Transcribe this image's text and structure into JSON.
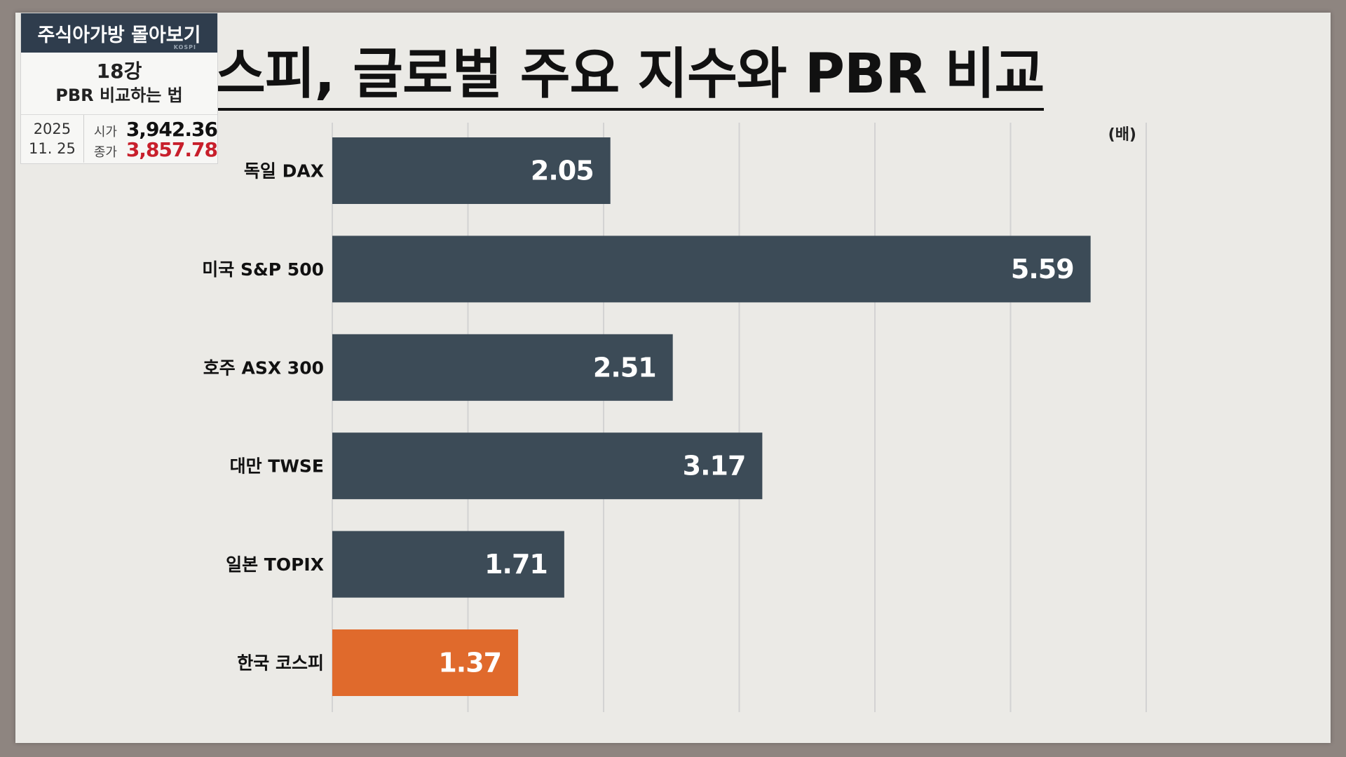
{
  "badge": {
    "series": "주식아가방 몰아보기",
    "lecture_number": "18강",
    "lecture_title": "PBR 비교하는 법",
    "date_year": "2025",
    "date_day": "11. 25",
    "open_label": "시가",
    "open_value": "3,942.36",
    "close_label": "종가",
    "close_value": "3,857.78",
    "logo_text": "KOSPI"
  },
  "page_title": "스피, 글로벌 주요 지수와 PBR 비교",
  "chart_data": {
    "type": "bar",
    "orientation": "horizontal",
    "title": "스피, 글로벌 주요 지수와 PBR 비교",
    "unit_label": "(배)",
    "categories": [
      "독일 DAX",
      "미국 S&P 500",
      "호주 ASX 300",
      "대만 TWSE",
      "일본 TOPIX",
      "한국 코스피"
    ],
    "values": [
      2.05,
      5.59,
      2.51,
      3.17,
      1.71,
      1.37
    ],
    "value_labels": [
      "2.05",
      "5.59",
      "2.51",
      "3.17",
      "1.71",
      "1.37"
    ],
    "xlim": [
      0,
      6
    ],
    "grid": true,
    "colors": {
      "default_bar": "#3c4b57",
      "highlight_bar": "#e06a2c",
      "grid": "#d3d3d3"
    },
    "highlight_category": "한국 코스피"
  }
}
